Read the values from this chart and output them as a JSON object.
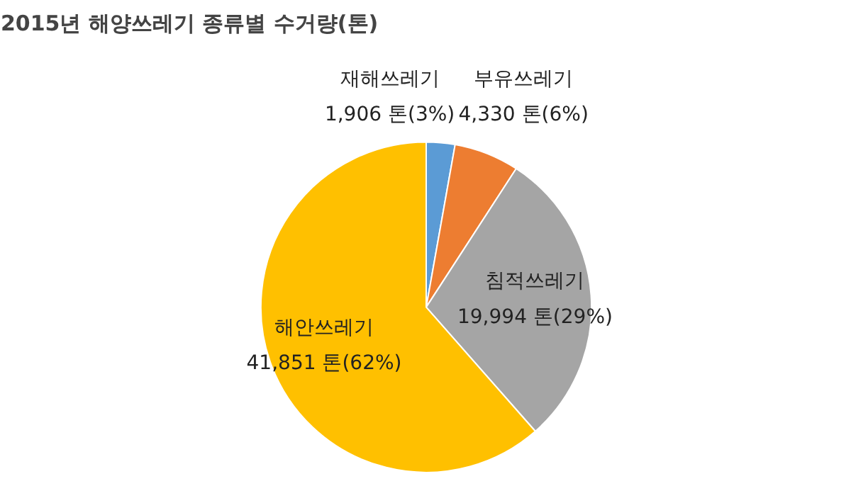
{
  "chart_data": {
    "type": "pie",
    "title": "2015년 해양쓰레기 종류별 수거량(톤)",
    "categories": [
      "재해쓰레기",
      "부유쓰레기",
      "침적쓰레기",
      "해안쓰레기"
    ],
    "values": [
      1906,
      4330,
      19994,
      41851
    ],
    "colors": [
      "#5b9bd5",
      "#ed7d31",
      "#a5a5a5",
      "#ffc000"
    ],
    "value_labels": [
      "1,906 톤(3%)",
      "4,330 톤(6%)",
      "19,994 톤(29%)",
      "41,851 톤(62%)"
    ]
  }
}
